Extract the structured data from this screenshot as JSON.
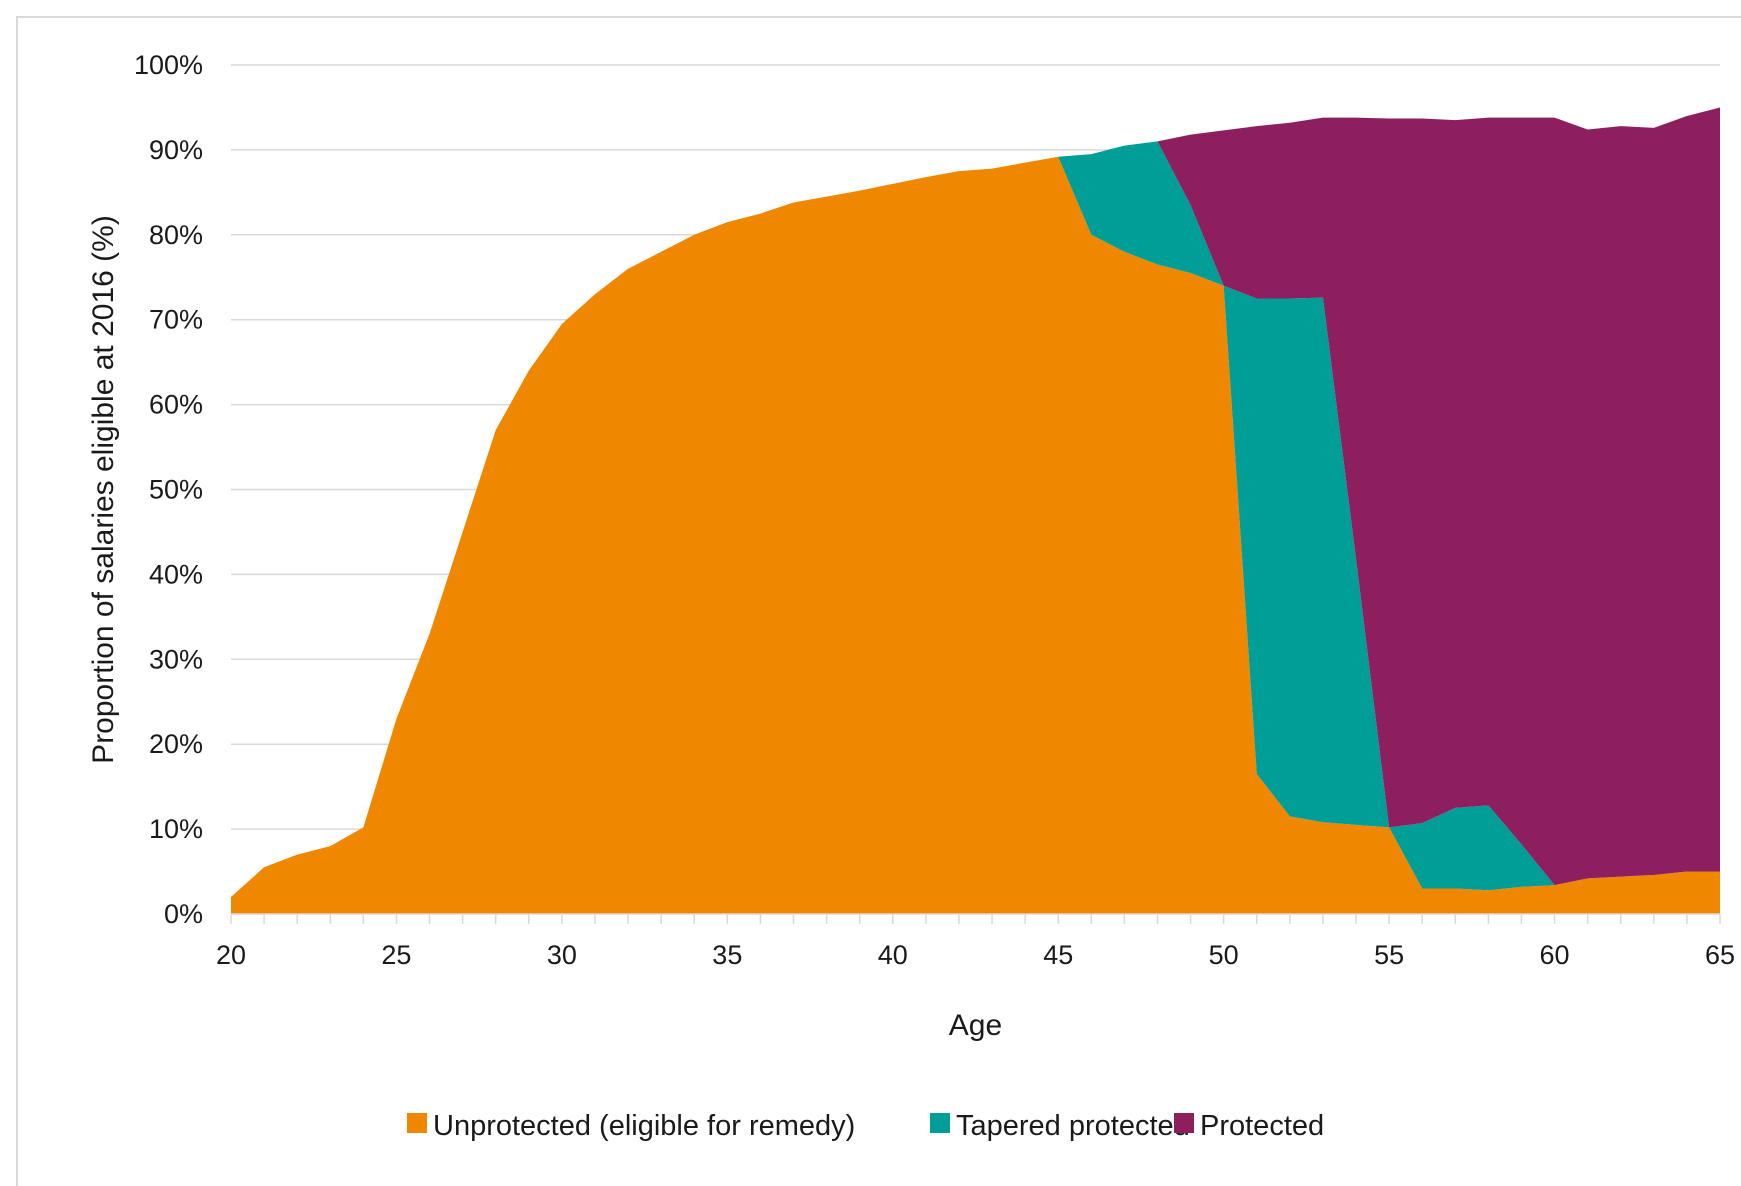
{
  "chart_data": {
    "type": "area",
    "stacked": true,
    "xlabel": "Age",
    "ylabel": "Proportion of salaries eligible at 2016 (%)",
    "xlim": [
      20,
      65
    ],
    "ylim": [
      0,
      100
    ],
    "x_ticks": [
      20,
      25,
      30,
      35,
      40,
      45,
      50,
      55,
      60,
      65
    ],
    "y_ticks": [
      0,
      10,
      20,
      30,
      40,
      50,
      60,
      70,
      80,
      90,
      100
    ],
    "y_tick_labels": [
      "0%",
      "10%",
      "20%",
      "30%",
      "40%",
      "50%",
      "60%",
      "70%",
      "80%",
      "90%",
      "100%"
    ],
    "grid": true,
    "legend_position": "bottom",
    "x": [
      20,
      21,
      22,
      23,
      24,
      25,
      26,
      27,
      28,
      29,
      30,
      31,
      32,
      33,
      34,
      35,
      36,
      37,
      38,
      39,
      40,
      41,
      42,
      43,
      44,
      45,
      46,
      47,
      48,
      49,
      50,
      51,
      52,
      53,
      54,
      55,
      56,
      57,
      58,
      59,
      60,
      61,
      62,
      63,
      64,
      65
    ],
    "series": [
      {
        "name": "Unprotected (eligible for remedy)",
        "color": "#f08700",
        "values": [
          2,
          5.5,
          7,
          8,
          10.2,
          23,
          33,
          45,
          57,
          64,
          69.5,
          73,
          76,
          78,
          80,
          81.5,
          82.5,
          83.8,
          84.5,
          85.2,
          86,
          86.8,
          87.5,
          87.8,
          88.5,
          89.2,
          80,
          78,
          76.5,
          75.5,
          74,
          16.5,
          11.5,
          10.8,
          10.5,
          10.2,
          3,
          3,
          2.8,
          3.2,
          3.4,
          4.2,
          4.4,
          4.6,
          5,
          5
        ]
      },
      {
        "name": "Tapered protected",
        "color": "#009e96",
        "values": [
          0,
          0,
          0,
          0,
          0,
          0,
          0,
          0,
          0,
          0,
          0,
          0,
          0,
          0,
          0,
          0,
          0,
          0,
          0,
          0,
          0,
          0,
          0,
          0,
          0,
          0,
          9.5,
          12.5,
          14.5,
          8,
          0,
          56,
          61,
          61.8,
          31.3,
          0,
          7.7,
          9.5,
          10,
          5,
          0,
          0,
          0,
          0,
          0,
          0
        ]
      },
      {
        "name": "Protected",
        "color": "#8e1f5e",
        "values": [
          0,
          0,
          0,
          0,
          0,
          0,
          0,
          0,
          0,
          0,
          0,
          0,
          0,
          0,
          0,
          0,
          0,
          0,
          0,
          0,
          0,
          0,
          0,
          0,
          0,
          0,
          0,
          0,
          0,
          8.3,
          18.3,
          20.3,
          20.7,
          21.2,
          52,
          83.5,
          83,
          81,
          81,
          85.6,
          90.4,
          88.2,
          88.4,
          88,
          89,
          90
        ]
      }
    ]
  }
}
